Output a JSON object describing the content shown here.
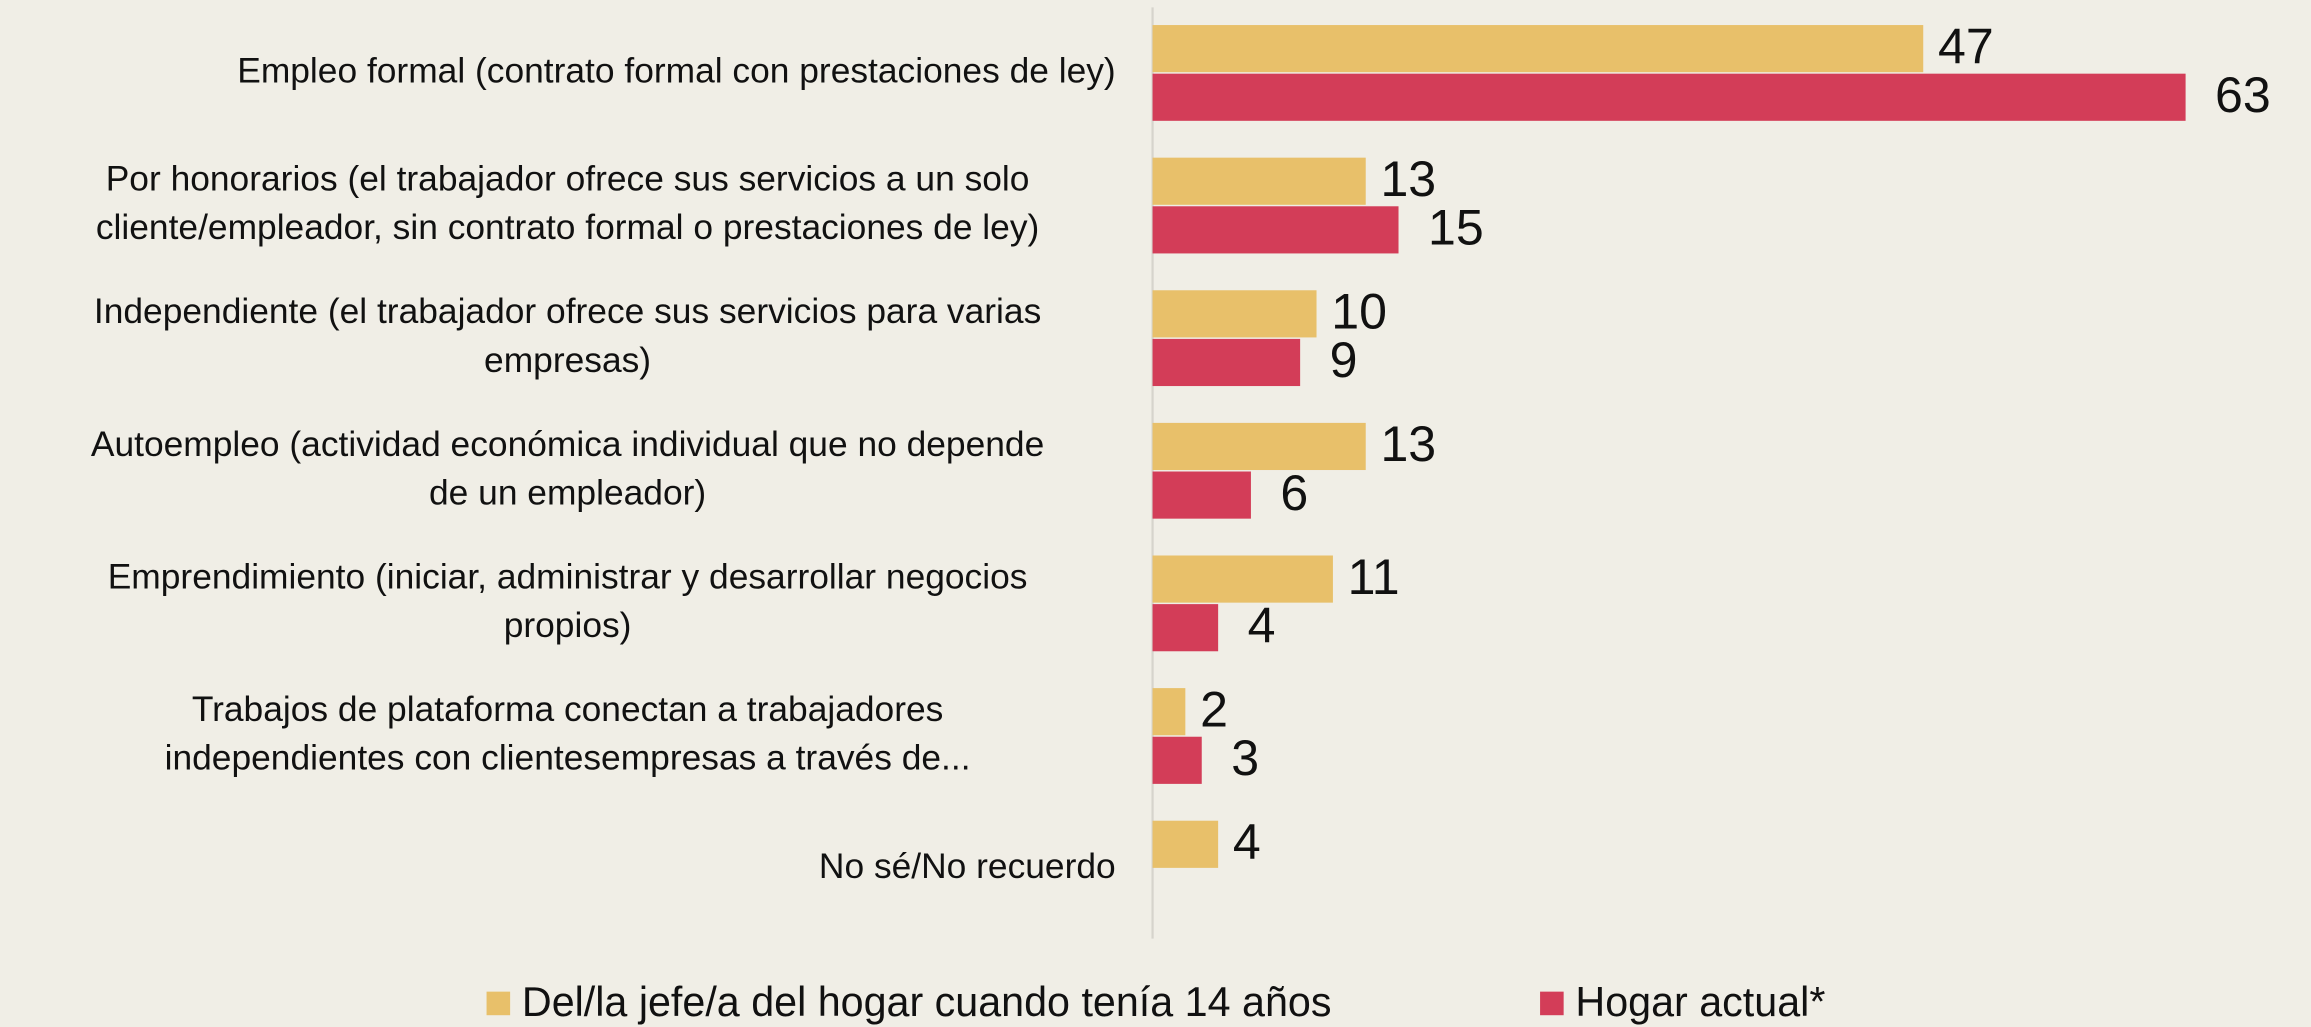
{
  "chart_data": {
    "type": "bar",
    "orientation": "horizontal",
    "categories": [
      [
        "Empleo formal (contrato formal con prestaciones de ley)"
      ],
      [
        "Por honorarios (el trabajador ofrece sus servicios a un solo",
        "cliente/empleador, sin contrato formal o prestaciones de ley)"
      ],
      [
        "Independiente (el trabajador ofrece sus servicios para varias",
        "empresas)"
      ],
      [
        "Autoempleo (actividad económica individual que no depende",
        "de un empleador)"
      ],
      [
        "Emprendimiento (iniciar, administrar y desarrollar negocios",
        "propios)"
      ],
      [
        "Trabajos de plataforma conectan a trabajadores",
        "independientes con clientesempresas a través de..."
      ],
      [
        "No sé/No recuerdo"
      ]
    ],
    "series": [
      {
        "name": "Del/la jefe/a del hogar cuando tenía 14 años",
        "color": "#e8c06a",
        "values": [
          47,
          13,
          10,
          13,
          11,
          2,
          4
        ]
      },
      {
        "name": "Hogar actual*",
        "color": "#d33d58",
        "values": [
          63,
          15,
          9,
          6,
          4,
          3,
          null
        ]
      }
    ],
    "xlim": [
      0,
      70
    ],
    "legend": "bottom"
  }
}
